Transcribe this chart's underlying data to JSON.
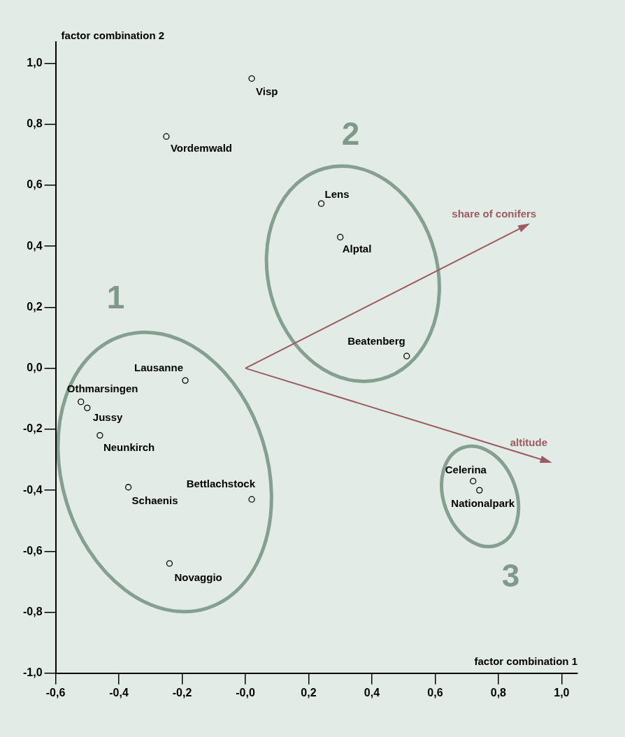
{
  "chart_data": {
    "type": "scatter",
    "xlabel": "factor combination 1",
    "ylabel": "factor combination 2",
    "marker": "circle",
    "legend": false,
    "grid": false,
    "annotations": [
      "1",
      "2",
      "3",
      "share of conifers",
      "altitude"
    ],
    "xlim": [
      -0.6,
      1.05
    ],
    "ylim": [
      -1.0,
      1.07
    ],
    "xticks": [
      {
        "value": -0.6,
        "label": "-0,6"
      },
      {
        "value": -0.4,
        "label": "-0,4"
      },
      {
        "value": -0.2,
        "label": "-0,2"
      },
      {
        "value": 0,
        "label": "-0,0"
      },
      {
        "value": 0.2,
        "label": "0,2"
      },
      {
        "value": 0.4,
        "label": "0,4"
      },
      {
        "value": 0.6,
        "label": "0,6"
      },
      {
        "value": 0.8,
        "label": "0,8"
      },
      {
        "value": 1.0,
        "label": "1,0"
      }
    ],
    "yticks": [
      {
        "value": 1.0,
        "label": "1,0"
      },
      {
        "value": 0.8,
        "label": "0,8"
      },
      {
        "value": 0.6,
        "label": "0,6"
      },
      {
        "value": 0.4,
        "label": "0,4"
      },
      {
        "value": 0.2,
        "label": "0,2"
      },
      {
        "value": 0,
        "label": "0,0"
      },
      {
        "value": -0.2,
        "label": "-0,2"
      },
      {
        "value": -0.4,
        "label": "-0,4"
      },
      {
        "value": -0.6,
        "label": "-0,6"
      },
      {
        "value": -0.8,
        "label": "-0,8"
      },
      {
        "value": -1.0,
        "label": "-1,0"
      }
    ],
    "series": [
      {
        "name": "Visp",
        "color": "#000000",
        "x": [
          0.02
        ],
        "values": [
          0.95
        ]
      },
      {
        "name": "Vordemwald",
        "color": "#000000",
        "x": [
          -0.25
        ],
        "values": [
          0.76
        ]
      },
      {
        "name": "Lens",
        "color": "#000000",
        "x": [
          0.24
        ],
        "values": [
          0.54
        ]
      },
      {
        "name": "Alptal",
        "color": "#000000",
        "x": [
          0.3
        ],
        "values": [
          0.43
        ]
      },
      {
        "name": "Beatenberg",
        "color": "#000000",
        "x": [
          0.51
        ],
        "values": [
          0.04
        ]
      },
      {
        "name": "Lausanne",
        "color": "#000000",
        "x": [
          -0.19
        ],
        "values": [
          -0.04
        ]
      },
      {
        "name": "Othmarsingen",
        "color": "#000000",
        "x": [
          -0.52
        ],
        "values": [
          -0.11
        ]
      },
      {
        "name": "Jussy",
        "color": "#000000",
        "x": [
          -0.5
        ],
        "values": [
          -0.13
        ]
      },
      {
        "name": "Neunkirch",
        "color": "#000000",
        "x": [
          -0.46
        ],
        "values": [
          -0.22
        ]
      },
      {
        "name": "Schaenis",
        "color": "#000000",
        "x": [
          -0.37
        ],
        "values": [
          -0.39
        ]
      },
      {
        "name": "Bettlachstock",
        "color": "#000000",
        "x": [
          0.02
        ],
        "values": [
          -0.43
        ]
      },
      {
        "name": "Novaggio",
        "color": "#000000",
        "x": [
          -0.24
        ],
        "values": [
          -0.64
        ]
      },
      {
        "name": "Celerina",
        "color": "#000000",
        "x": [
          0.72
        ],
        "values": [
          -0.37
        ]
      },
      {
        "name": "Nationalpark",
        "color": "#000000",
        "x": [
          0.74
        ],
        "values": [
          -0.4
        ]
      }
    ]
  }
}
